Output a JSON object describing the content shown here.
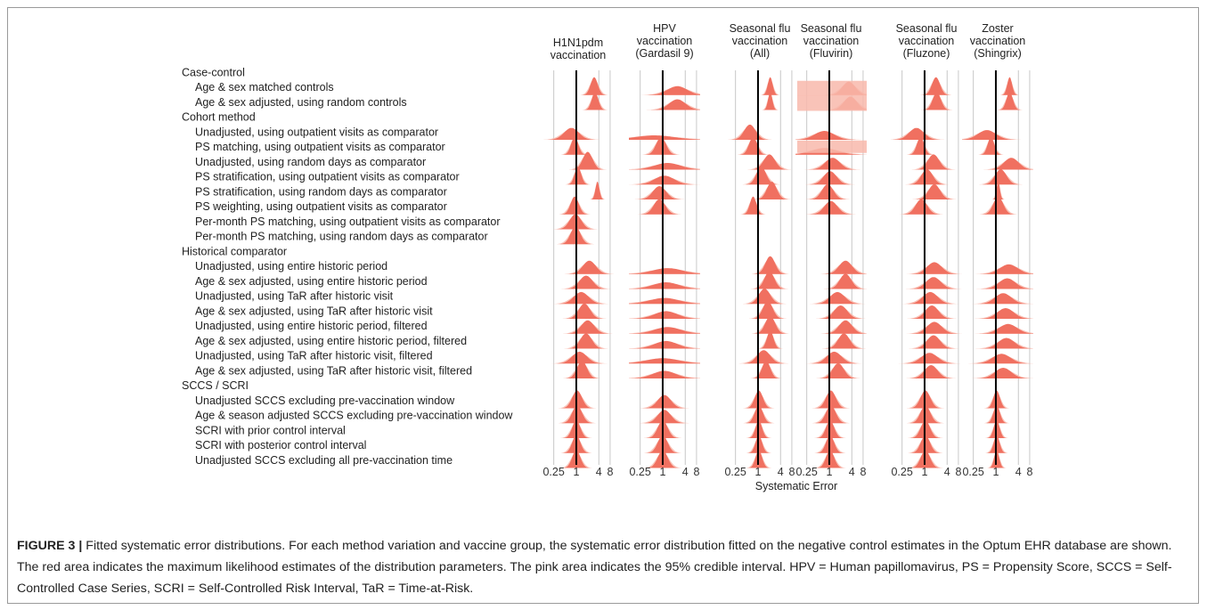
{
  "figure": {
    "label": "FIGURE 3 |",
    "caption": "Fitted systematic error distributions. For each method variation and vaccine group, the systematic error distribution fitted on the negative control estimates in the Optum EHR database are shown. The red area indicates the maximum likelihood estimates of the distribution parameters. The pink area indicates the 95% credible interval. HPV = Human papillomavirus, PS = Propensity Score, SCCS = Self-Controlled Case Series, SCRI = Self-Controlled Risk Interval, TaR = Time-at-Risk."
  },
  "colors": {
    "estimate": "#f07060",
    "interval": "#f8b8ac",
    "grid": "#c8c8c8",
    "reference": "#000000"
  },
  "chart_data": {
    "type": "ridgeline",
    "xlabel": "Systematic Error",
    "x_scale": "log",
    "x_ticks": [
      "0.25",
      "1",
      "4",
      "8"
    ],
    "x_tick_values": [
      0.25,
      1,
      4,
      8
    ],
    "xlim": [
      0.125,
      10
    ],
    "reference_value": 1,
    "panels": [
      {
        "title": [
          "H1N1pdm",
          "vaccination"
        ]
      },
      {
        "title": [
          "HPV",
          "vaccination",
          "(Gardasil 9)"
        ]
      },
      {
        "title": [
          "Seasonal flu",
          "vaccination",
          "(All)"
        ]
      },
      {
        "title": [
          "Seasonal flu",
          "vaccination",
          "(Fluvirin)"
        ]
      },
      {
        "title": [
          "Seasonal flu",
          "vaccination",
          "(Fluzone)"
        ]
      },
      {
        "title": [
          "Zoster",
          "vaccination",
          "(Shingrix)"
        ]
      }
    ],
    "rows": [
      {
        "label": "Case-control",
        "group": true
      },
      {
        "label": "Age & sex matched controls",
        "group": false
      },
      {
        "label": "Age & sex adjusted, using random controls",
        "group": false
      },
      {
        "label": "Cohort method",
        "group": true
      },
      {
        "label": "Unadjusted, using outpatient visits as comparator",
        "group": false
      },
      {
        "label": "PS matching, using outpatient visits as comparator",
        "group": false
      },
      {
        "label": "Unadjusted, using random days as comparator",
        "group": false
      },
      {
        "label": "PS stratification, using outpatient visits as comparator",
        "group": false
      },
      {
        "label": "PS stratification, using random days as comparator",
        "group": false
      },
      {
        "label": "PS weighting, using outpatient visits as comparator",
        "group": false
      },
      {
        "label": "Per-month PS matching, using outpatient visits as comparator",
        "group": false
      },
      {
        "label": "Per-month PS matching, using random days as comparator",
        "group": false
      },
      {
        "label": "Historical comparator",
        "group": true
      },
      {
        "label": "Unadjusted, using entire historic period",
        "group": false
      },
      {
        "label": "Age & sex adjusted, using entire historic period",
        "group": false
      },
      {
        "label": "Unadjusted, using TaR after historic visit",
        "group": false
      },
      {
        "label": "Age & sex adjusted, using TaR after historic visit",
        "group": false
      },
      {
        "label": "Unadjusted, using entire historic period, filtered",
        "group": false
      },
      {
        "label": "Age & sex adjusted, using entire historic period, filtered",
        "group": false
      },
      {
        "label": "Unadjusted, using TaR after historic visit, filtered",
        "group": false
      },
      {
        "label": "Age & sex adjusted, using TaR after historic visit, filtered",
        "group": false
      },
      {
        "label": "SCCS / SCRI",
        "group": true
      },
      {
        "label": "Unadjusted SCCS excluding pre-vaccination window",
        "group": false
      },
      {
        "label": "Age & season adjusted SCCS excluding pre-vaccination window",
        "group": false
      },
      {
        "label": "SCRI with prior control interval",
        "group": false
      },
      {
        "label": "SCRI with posterior control interval",
        "group": false
      },
      {
        "label": "Unadjusted SCCS excluding all pre-vaccination time",
        "group": false
      }
    ],
    "distributions_note": "mu = mean of log systematic error, sigma = SD of log systematic error (estimated), per panel per row; null = not shown",
    "distributions": [
      [
        null,
        [
          1.1,
          0.22
        ],
        [
          1.15,
          0.2
        ],
        null,
        [
          -0.3,
          0.45
        ],
        [
          -0.1,
          0.22
        ],
        [
          0.7,
          0.3
        ],
        [
          0.1,
          0.2
        ],
        [
          1.3,
          0.12
        ],
        [
          -0.1,
          0.25
        ],
        [
          -0.05,
          0.35
        ],
        [
          -0.05,
          0.3
        ],
        null,
        [
          0.8,
          0.4
        ],
        [
          0.6,
          0.4
        ],
        [
          0.3,
          0.45
        ],
        [
          0.5,
          0.35
        ],
        [
          0.7,
          0.4
        ],
        [
          0.6,
          0.35
        ],
        [
          0.2,
          0.45
        ],
        [
          0.35,
          0.3
        ],
        null,
        [
          0.05,
          0.3
        ],
        [
          0.05,
          0.3
        ],
        [
          0,
          0.25
        ],
        [
          0,
          0.25
        ],
        [
          0,
          0.25
        ]
      ],
      [
        null,
        [
          0.9,
          0.6
        ],
        [
          0.9,
          0.5
        ],
        null,
        [
          -0.5,
          1.2
        ],
        [
          -0.1,
          0.3
        ],
        [
          0.3,
          0.8
        ],
        [
          0.1,
          0.6
        ],
        [
          -0.2,
          0.4
        ],
        [
          -0.2,
          0.35
        ],
        null,
        null,
        null,
        [
          0.3,
          0.9
        ],
        [
          0.2,
          0.8
        ],
        [
          0.1,
          0.9
        ],
        [
          0.2,
          0.7
        ],
        [
          0.3,
          0.8
        ],
        [
          0.2,
          0.7
        ],
        [
          0,
          1.0
        ],
        [
          0.1,
          0.7
        ],
        null,
        [
          0.1,
          0.4
        ],
        [
          0.1,
          0.4
        ],
        [
          0,
          0.3
        ],
        [
          0,
          0.3
        ],
        [
          0,
          0.3
        ]
      ],
      [
        null,
        [
          0.75,
          0.15
        ],
        [
          0.75,
          0.13
        ],
        null,
        [
          -0.5,
          0.35
        ],
        [
          -0.3,
          0.25
        ],
        [
          0.7,
          0.35
        ],
        [
          0.2,
          0.3
        ],
        [
          0.85,
          0.3
        ],
        [
          -0.3,
          0.2
        ],
        null,
        null,
        null,
        [
          0.75,
          0.3
        ],
        [
          0.7,
          0.3
        ],
        [
          0.4,
          0.35
        ],
        [
          0.6,
          0.3
        ],
        [
          0.75,
          0.3
        ],
        [
          0.75,
          0.2
        ],
        [
          0.35,
          0.4
        ],
        [
          0.5,
          0.25
        ],
        null,
        [
          0.05,
          0.25
        ],
        [
          0.05,
          0.25
        ],
        [
          0.05,
          0.2
        ],
        [
          0.05,
          0.2
        ],
        [
          0.05,
          0.2
        ]
      ],
      [
        null,
        [
          1.2,
          0.4
        ],
        [
          1.3,
          0.4
        ],
        null,
        [
          -0.3,
          0.6
        ],
        [
          -0.3,
          0.8
        ],
        [
          0.2,
          0.45
        ],
        [
          0.05,
          0.4
        ],
        [
          -0.1,
          0.35
        ],
        [
          0.1,
          0.4
        ],
        null,
        null,
        null,
        [
          1.0,
          0.4
        ],
        [
          1.0,
          0.35
        ],
        [
          0.5,
          0.45
        ],
        [
          0.7,
          0.4
        ],
        [
          1.0,
          0.4
        ],
        [
          0.9,
          0.35
        ],
        [
          0.3,
          0.45
        ],
        [
          0.55,
          0.35
        ],
        null,
        [
          0.1,
          0.3
        ],
        [
          0.1,
          0.3
        ],
        [
          0.05,
          0.25
        ],
        [
          0.05,
          0.25
        ],
        [
          0.05,
          0.25
        ]
      ],
      [
        null,
        [
          0.7,
          0.25
        ],
        [
          0.75,
          0.25
        ],
        null,
        [
          -0.5,
          0.45
        ],
        [
          -0.25,
          0.22
        ],
        [
          0.55,
          0.35
        ],
        [
          0.15,
          0.35
        ],
        [
          0.6,
          0.35
        ],
        [
          -0.2,
          0.35
        ],
        null,
        null,
        null,
        [
          0.6,
          0.45
        ],
        [
          0.55,
          0.45
        ],
        [
          0.35,
          0.45
        ],
        [
          0.45,
          0.4
        ],
        [
          0.6,
          0.45
        ],
        [
          0.55,
          0.4
        ],
        [
          0.3,
          0.5
        ],
        [
          0.4,
          0.4
        ],
        null,
        [
          0.05,
          0.3
        ],
        [
          0.05,
          0.3
        ],
        [
          0.05,
          0.28
        ],
        [
          0.05,
          0.28
        ],
        [
          0.05,
          0.28
        ]
      ],
      [
        null,
        [
          0.85,
          0.15
        ],
        [
          0.85,
          0.2
        ],
        null,
        [
          -0.55,
          0.55
        ],
        [
          -0.3,
          0.2
        ],
        [
          0.95,
          0.45
        ],
        [
          0.3,
          0.35
        ],
        [
          0.15,
          0.1
        ],
        [
          0.15,
          0.3
        ],
        null,
        null,
        null,
        [
          0.8,
          0.55
        ],
        [
          0.7,
          0.5
        ],
        [
          0.45,
          0.5
        ],
        [
          0.6,
          0.5
        ],
        [
          0.75,
          0.55
        ],
        [
          0.65,
          0.5
        ],
        [
          0.35,
          0.55
        ],
        [
          0.45,
          0.5
        ],
        null,
        [
          0.05,
          0.2
        ],
        [
          0.05,
          0.2
        ],
        [
          0.05,
          0.18
        ],
        [
          0.05,
          0.18
        ],
        [
          0.05,
          0.15
        ]
      ]
    ],
    "pink_band_highlight": [
      [
        3,
        5,
        "wide"
      ],
      [
        3,
        1,
        "wide"
      ],
      [
        3,
        2,
        "wide"
      ]
    ]
  }
}
